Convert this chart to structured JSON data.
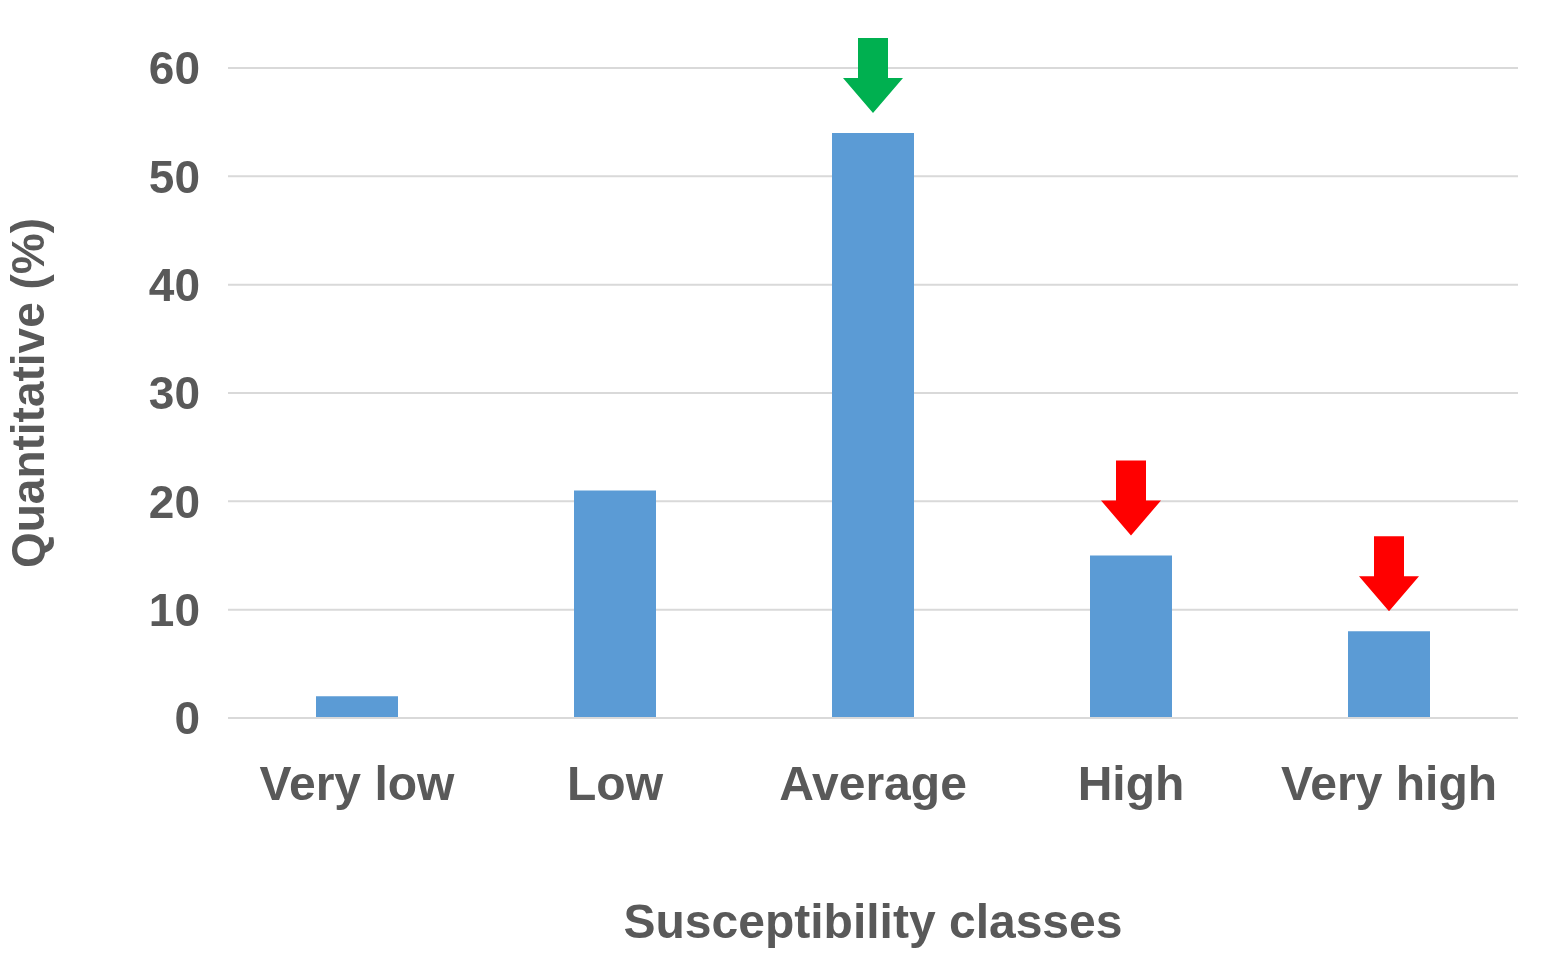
{
  "chart_data": {
    "type": "bar",
    "xlabel": "Susceptibility classes",
    "ylabel": "Quantitative (%)",
    "categories": [
      "Very low",
      "Low",
      "Average",
      "High",
      "Very high"
    ],
    "values": [
      2,
      21,
      54,
      15,
      8
    ],
    "color": "#5b9bd5",
    "ylim": [
      0,
      60
    ],
    "yticks": [
      0,
      10,
      20,
      30,
      40,
      50,
      60
    ],
    "grid": "y"
  }
}
